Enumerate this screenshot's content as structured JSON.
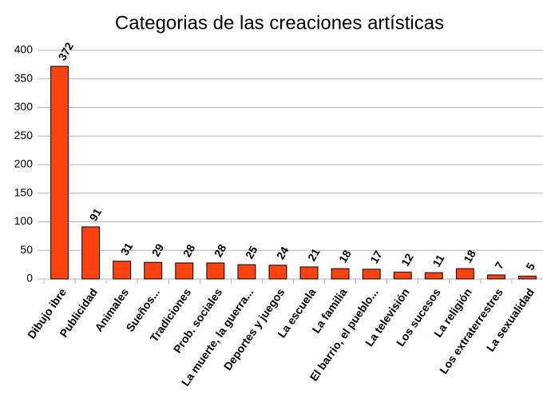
{
  "chart_data": {
    "type": "bar",
    "title": "Categorias de las creaciones artísticas",
    "categories": [
      "Dibujo ibre",
      "Publicidad",
      "Animales",
      "Sueños...",
      "Tradiciones",
      "Prob. sociales",
      "La muerte, la guerra...",
      "Deportes y juegos",
      "La escuela",
      "La familia",
      "El barrio, el pueblo...",
      "La televisión",
      "Los sucesos",
      "La religión",
      "Los extraterrestres",
      "La sexualidad"
    ],
    "values": [
      372,
      91,
      31,
      29,
      28,
      28,
      25,
      24,
      21,
      18,
      17,
      12,
      11,
      18,
      7,
      5
    ],
    "color": "#ff420e",
    "ylim": [
      0,
      400
    ],
    "yticks": [
      0,
      50,
      100,
      150,
      200,
      250,
      300,
      350,
      400
    ],
    "grid": true,
    "value_labels_shown": true
  }
}
